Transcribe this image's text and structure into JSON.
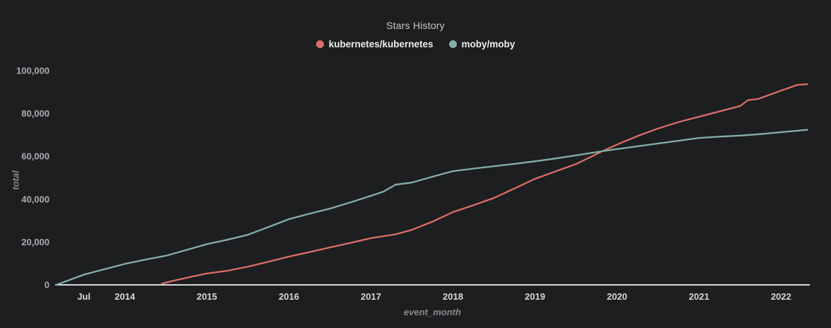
{
  "header": {
    "title": "Stars History"
  },
  "legend": [
    {
      "label": "kubernetes/kubernetes",
      "color": "#db6f68"
    },
    {
      "label": "moby/moby",
      "color": "#85aeab"
    }
  ],
  "colors": {
    "background": "#1d1e20",
    "grid_line": "#2e3033",
    "axis_line": "#d7d8da",
    "kubernetes_series": "#db6f68",
    "moby_series": "#85aeab"
  },
  "chart_data": {
    "type": "line",
    "title": "Stars History",
    "xlabel": "event_month",
    "ylabel": "total",
    "legend_position": "top-center",
    "grid": "horizontal dashed",
    "x_domain": [
      2013.15,
      2022.35
    ],
    "ylim": [
      0,
      100000
    ],
    "x_ticks": [
      {
        "year": 2013.5,
        "label": "Jul"
      },
      {
        "year": 2014,
        "label": "2014"
      },
      {
        "year": 2015,
        "label": "2015"
      },
      {
        "year": 2016,
        "label": "2016"
      },
      {
        "year": 2017,
        "label": "2017"
      },
      {
        "year": 2018,
        "label": "2018"
      },
      {
        "year": 2019,
        "label": "2019"
      },
      {
        "year": 2020,
        "label": "2020"
      },
      {
        "year": 2021,
        "label": "2021"
      },
      {
        "year": 2022,
        "label": "2022"
      }
    ],
    "y_ticks": [
      {
        "value": 0,
        "label": "0"
      },
      {
        "value": 20000,
        "label": "20,000"
      },
      {
        "value": 40000,
        "label": "40,000"
      },
      {
        "value": 60000,
        "label": "60,000"
      },
      {
        "value": 80000,
        "label": "80,000"
      },
      {
        "value": 100000,
        "label": "100,000"
      }
    ],
    "series": [
      {
        "name": "kubernetes/kubernetes",
        "color": "#db6f68",
        "points": [
          [
            2014.45,
            600
          ],
          [
            2014.6,
            2000
          ],
          [
            2014.75,
            3300
          ],
          [
            2014.92,
            4700
          ],
          [
            2015.0,
            5300
          ],
          [
            2015.25,
            6600
          ],
          [
            2015.5,
            8500
          ],
          [
            2015.75,
            10800
          ],
          [
            2016.0,
            13200
          ],
          [
            2016.25,
            15300
          ],
          [
            2016.5,
            17500
          ],
          [
            2016.75,
            19600
          ],
          [
            2017.0,
            21800
          ],
          [
            2017.3,
            23600
          ],
          [
            2017.5,
            25700
          ],
          [
            2017.75,
            29500
          ],
          [
            2018.0,
            34000
          ],
          [
            2018.25,
            37200
          ],
          [
            2018.5,
            40600
          ],
          [
            2018.75,
            45000
          ],
          [
            2019.0,
            49500
          ],
          [
            2019.25,
            53000
          ],
          [
            2019.5,
            56400
          ],
          [
            2019.8,
            62000
          ],
          [
            2020.0,
            65500
          ],
          [
            2020.25,
            69500
          ],
          [
            2020.5,
            73000
          ],
          [
            2020.75,
            76000
          ],
          [
            2021.0,
            78500
          ],
          [
            2021.25,
            81000
          ],
          [
            2021.5,
            83500
          ],
          [
            2021.6,
            86300
          ],
          [
            2021.72,
            86800
          ],
          [
            2022.0,
            90700
          ],
          [
            2022.2,
            93400
          ],
          [
            2022.32,
            93700
          ]
        ]
      },
      {
        "name": "moby/moby",
        "color": "#85aeab",
        "points": [
          [
            2013.17,
            100
          ],
          [
            2013.5,
            4800
          ],
          [
            2013.75,
            7300
          ],
          [
            2014.0,
            9800
          ],
          [
            2014.25,
            11800
          ],
          [
            2014.5,
            13600
          ],
          [
            2014.75,
            16300
          ],
          [
            2015.0,
            19000
          ],
          [
            2015.25,
            21100
          ],
          [
            2015.5,
            23400
          ],
          [
            2015.75,
            27000
          ],
          [
            2016.0,
            30700
          ],
          [
            2016.25,
            33200
          ],
          [
            2016.5,
            35600
          ],
          [
            2016.75,
            38500
          ],
          [
            2017.0,
            41600
          ],
          [
            2017.15,
            43500
          ],
          [
            2017.3,
            46800
          ],
          [
            2017.5,
            47800
          ],
          [
            2017.75,
            50500
          ],
          [
            2018.0,
            53100
          ],
          [
            2018.25,
            54300
          ],
          [
            2018.5,
            55400
          ],
          [
            2018.75,
            56500
          ],
          [
            2019.0,
            57700
          ],
          [
            2019.25,
            59000
          ],
          [
            2019.5,
            60500
          ],
          [
            2019.8,
            62300
          ],
          [
            2020.0,
            63400
          ],
          [
            2020.25,
            64700
          ],
          [
            2020.5,
            66000
          ],
          [
            2020.75,
            67300
          ],
          [
            2021.0,
            68600
          ],
          [
            2021.25,
            69200
          ],
          [
            2021.5,
            69700
          ],
          [
            2021.75,
            70400
          ],
          [
            2022.0,
            71300
          ],
          [
            2022.32,
            72400
          ]
        ]
      }
    ]
  }
}
